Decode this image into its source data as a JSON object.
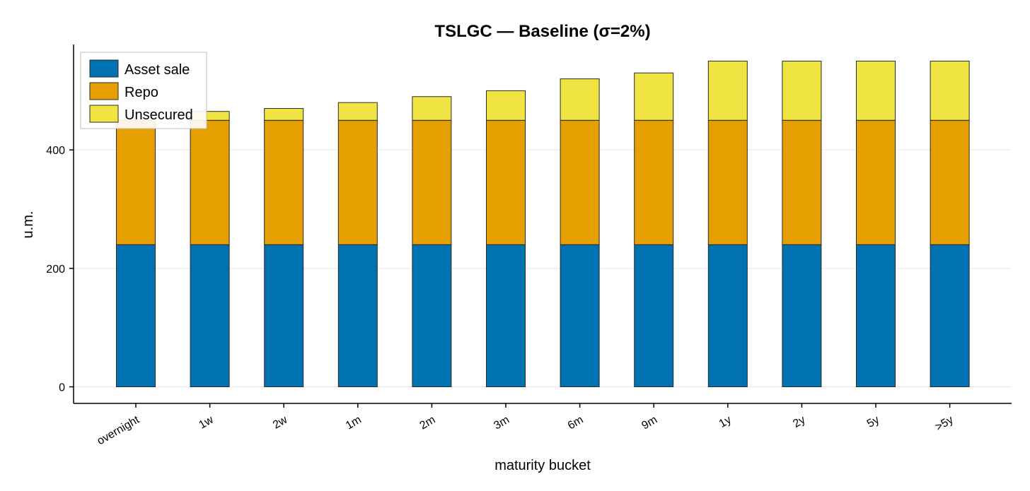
{
  "chart_data": {
    "type": "bar",
    "stacked": true,
    "title": "TSLGC — Baseline (σ=2%)",
    "xlabel": "maturity bucket",
    "ylabel": "u.m.",
    "categories": [
      "overnight",
      "1w",
      "2w",
      "1m",
      "2m",
      "3m",
      "6m",
      "9m",
      "1y",
      "2y",
      "5y",
      ">5y"
    ],
    "series": [
      {
        "name": "Asset sale",
        "color": "#0072b2",
        "values": [
          240,
          240,
          240,
          240,
          240,
          240,
          240,
          240,
          240,
          240,
          240,
          240
        ]
      },
      {
        "name": "Repo",
        "color": "#e69f00",
        "values": [
          210,
          210,
          210,
          210,
          210,
          210,
          210,
          210,
          210,
          210,
          210,
          210
        ]
      },
      {
        "name": "Unsecured",
        "color": "#f0e442",
        "values": [
          0,
          15,
          20,
          30,
          40,
          50,
          70,
          80,
          100,
          100,
          100,
          100
        ]
      }
    ],
    "yticks": [
      0,
      200,
      400
    ],
    "ylim": [
      -28,
      578
    ],
    "grid": true,
    "legend_position": "top-left"
  }
}
